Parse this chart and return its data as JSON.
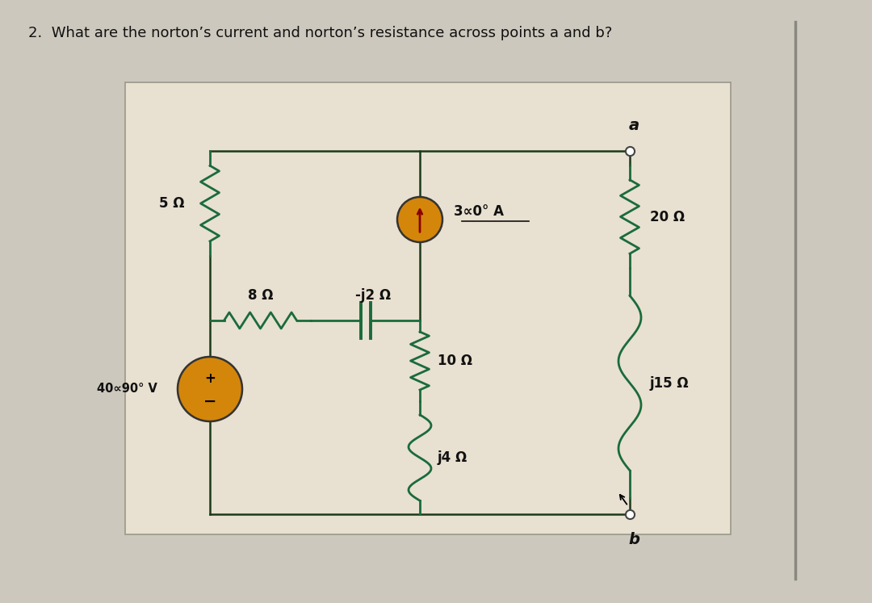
{
  "title": "2.  What are the norton’s current and norton’s resistance across points a and b?",
  "title_fontsize": 13,
  "bg_color": "#cdc8be",
  "circuit_bg": "#e8e0d0",
  "text_color": "#111111",
  "comp_color": "#1a6b3c",
  "wire_color": "#1a3a1a",
  "source_color": "#d4860a",
  "labels": {
    "R1": "5 Ω",
    "R2": "8 Ω",
    "C1": "-j2 Ω",
    "R3": "10 Ω",
    "C2": "j4 Ω",
    "R4": "20 Ω",
    "L1": "j15 Ω",
    "V1": "40∝90° V",
    "I1": "3∝0° A",
    "node_a": "a",
    "node_b": "b"
  }
}
